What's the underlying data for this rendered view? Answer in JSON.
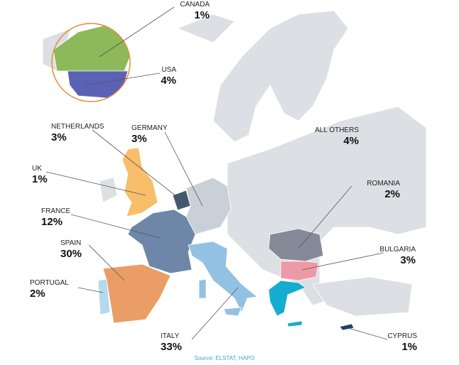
{
  "regions": [
    {
      "name": "CANADA",
      "share": "1%",
      "color": "#8db95a"
    },
    {
      "name": "USA",
      "share": "4%",
      "color": "#5b62b5"
    },
    {
      "name": "NETHERLANDS",
      "share": "3%",
      "color": "#46586e"
    },
    {
      "name": "GERMANY",
      "share": "3%",
      "color": "#c9d0d8"
    },
    {
      "name": "ALL OTHERS",
      "share": "4%",
      "color": "#dcdfe3"
    },
    {
      "name": "UK",
      "share": "1%",
      "color": "#f8be6a"
    },
    {
      "name": "FRANCE",
      "share": "12%",
      "color": "#6e87a8"
    },
    {
      "name": "SPAIN",
      "share": "30%",
      "color": "#ea9e66"
    },
    {
      "name": "PORTUGAL",
      "share": "2%",
      "color": "#b3d9ec"
    },
    {
      "name": "ITALY",
      "share": "33%",
      "color": "#93c1e3"
    },
    {
      "name": "ROMANIA",
      "share": "2%",
      "color": "#858a99"
    },
    {
      "name": "BULGARIA",
      "share": "3%",
      "color": "#ee9aa6"
    },
    {
      "name": "CYPRUS",
      "share": "1%",
      "color": "#1f3f6e"
    }
  ],
  "source": "Source: ELSTAT, HAPO"
}
